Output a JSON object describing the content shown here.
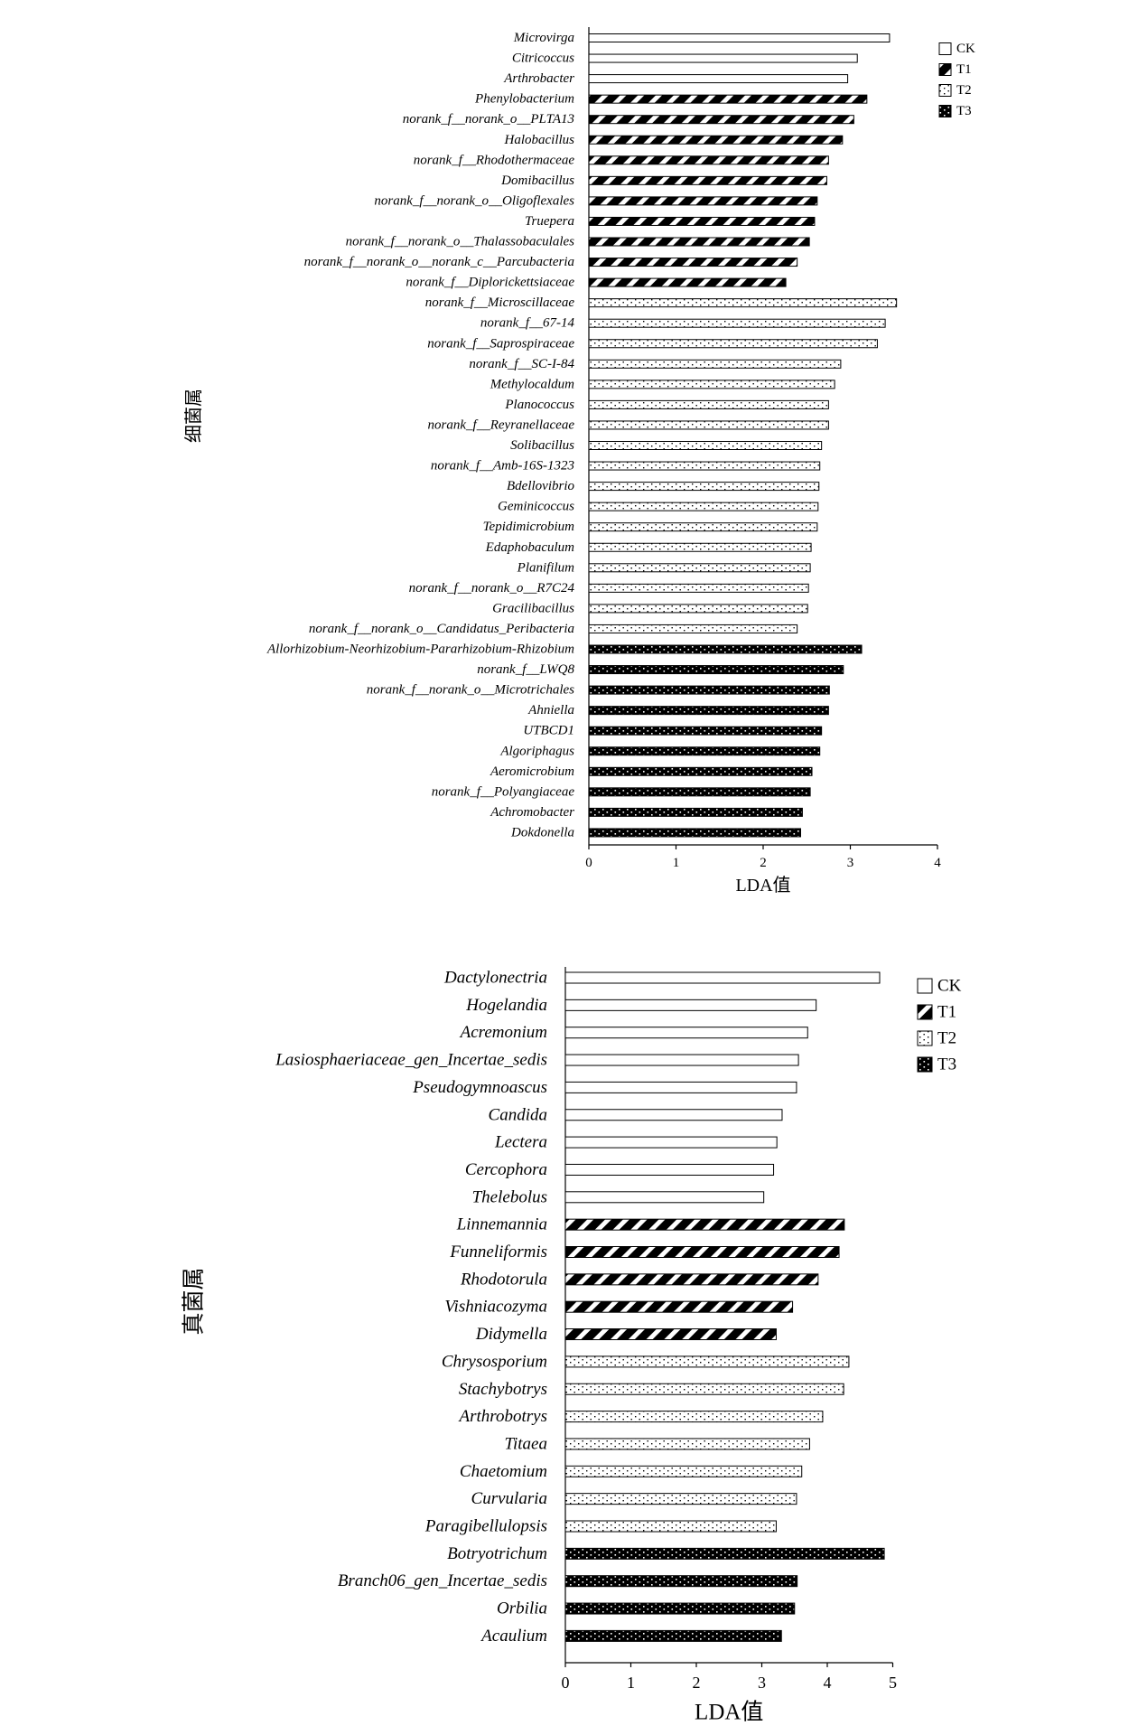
{
  "chart_data": [
    {
      "type": "bar",
      "orientation": "horizontal",
      "xlabel": "LDA值",
      "ylabel": "细菌属",
      "xlim": [
        0,
        4
      ],
      "xticks": [
        0,
        1,
        2,
        3,
        4
      ],
      "legend": {
        "position": "top-right",
        "entries": [
          "CK",
          "T1",
          "T2",
          "T3"
        ]
      },
      "series_styles": {
        "CK": {
          "fill": "#ffffff",
          "pattern": "none"
        },
        "T1": {
          "fill": "#000000",
          "pattern": "diagonal-stripes"
        },
        "T2": {
          "fill": "#ffffff",
          "pattern": "sparse-dots"
        },
        "T3": {
          "fill": "#000000",
          "pattern": "dense-dots"
        }
      },
      "bars": [
        {
          "label": "Microvirga",
          "value": 3.45,
          "group": "CK"
        },
        {
          "label": "Citricoccus",
          "value": 3.08,
          "group": "CK"
        },
        {
          "label": "Arthrobacter",
          "value": 2.97,
          "group": "CK"
        },
        {
          "label": "Phenylobacterium",
          "value": 3.19,
          "group": "T1"
        },
        {
          "label": "norank_f__norank_o__PLTA13",
          "value": 3.04,
          "group": "T1"
        },
        {
          "label": "Halobacillus",
          "value": 2.91,
          "group": "T1"
        },
        {
          "label": "norank_f__Rhodothermaceae",
          "value": 2.75,
          "group": "T1"
        },
        {
          "label": "Domibacillus",
          "value": 2.73,
          "group": "T1"
        },
        {
          "label": "norank_f__norank_o__Oligoflexales",
          "value": 2.62,
          "group": "T1"
        },
        {
          "label": "Truepera",
          "value": 2.59,
          "group": "T1"
        },
        {
          "label": "norank_f__norank_o__Thalassobaculales",
          "value": 2.53,
          "group": "T1"
        },
        {
          "label": "norank_f__norank_o__norank_c__Parcubacteria",
          "value": 2.39,
          "group": "T1"
        },
        {
          "label": "norank_f__Diplorickettsiaceae",
          "value": 2.26,
          "group": "T1"
        },
        {
          "label": "norank_f__Microscillaceae",
          "value": 3.53,
          "group": "T2"
        },
        {
          "label": "norank_f__67-14",
          "value": 3.4,
          "group": "T2"
        },
        {
          "label": "norank_f__Saprospiraceae",
          "value": 3.31,
          "group": "T2"
        },
        {
          "label": "norank_f__SC-I-84",
          "value": 2.89,
          "group": "T2"
        },
        {
          "label": "Methylocaldum",
          "value": 2.82,
          "group": "T2"
        },
        {
          "label": "Planococcus",
          "value": 2.75,
          "group": "T2"
        },
        {
          "label": "norank_f__Reyranellaceae",
          "value": 2.75,
          "group": "T2"
        },
        {
          "label": "Solibacillus",
          "value": 2.67,
          "group": "T2"
        },
        {
          "label": "norank_f__Amb-16S-1323",
          "value": 2.65,
          "group": "T2"
        },
        {
          "label": "Bdellovibrio",
          "value": 2.64,
          "group": "T2"
        },
        {
          "label": "Geminicoccus",
          "value": 2.63,
          "group": "T2"
        },
        {
          "label": "Tepidimicrobium",
          "value": 2.62,
          "group": "T2"
        },
        {
          "label": "Edaphobaculum",
          "value": 2.55,
          "group": "T2"
        },
        {
          "label": "Planifilum",
          "value": 2.54,
          "group": "T2"
        },
        {
          "label": "norank_f__norank_o__R7C24",
          "value": 2.52,
          "group": "T2"
        },
        {
          "label": "Gracilibacillus",
          "value": 2.51,
          "group": "T2"
        },
        {
          "label": "norank_f__norank_o__Candidatus_Peribacteria",
          "value": 2.39,
          "group": "T2"
        },
        {
          "label": "Allorhizobium-Neorhizobium-Pararhizobium-Rhizobium",
          "value": 3.13,
          "group": "T3"
        },
        {
          "label": "norank_f__LWQ8",
          "value": 2.92,
          "group": "T3"
        },
        {
          "label": "norank_f__norank_o__Microtrichales",
          "value": 2.76,
          "group": "T3"
        },
        {
          "label": "Ahniella",
          "value": 2.75,
          "group": "T3"
        },
        {
          "label": "UTBCD1",
          "value": 2.67,
          "group": "T3"
        },
        {
          "label": "Algoriphagus",
          "value": 2.65,
          "group": "T3"
        },
        {
          "label": "Aeromicrobium",
          "value": 2.56,
          "group": "T3"
        },
        {
          "label": "norank_f__Polyangiaceae",
          "value": 2.54,
          "group": "T3"
        },
        {
          "label": "Achromobacter",
          "value": 2.45,
          "group": "T3"
        },
        {
          "label": "Dokdonella",
          "value": 2.43,
          "group": "T3"
        }
      ]
    },
    {
      "type": "bar",
      "orientation": "horizontal",
      "xlabel": "LDA值",
      "ylabel": "真菌属",
      "xlim": [
        0,
        5
      ],
      "xticks": [
        0,
        1,
        2,
        3,
        4,
        5
      ],
      "legend": {
        "position": "top-right",
        "entries": [
          "CK",
          "T1",
          "T2",
          "T3"
        ]
      },
      "series_styles": {
        "CK": {
          "fill": "#ffffff",
          "pattern": "none"
        },
        "T1": {
          "fill": "#000000",
          "pattern": "diagonal-stripes"
        },
        "T2": {
          "fill": "#ffffff",
          "pattern": "sparse-dots"
        },
        "T3": {
          "fill": "#000000",
          "pattern": "dense-dots"
        }
      },
      "bars": [
        {
          "label": "Dactylonectria",
          "value": 4.8,
          "group": "CK"
        },
        {
          "label": "Hogelandia",
          "value": 3.83,
          "group": "CK"
        },
        {
          "label": "Acremonium",
          "value": 3.7,
          "group": "CK"
        },
        {
          "label": "Lasiosphaeriaceae_gen_Incertae_sedis",
          "value": 3.56,
          "group": "CK"
        },
        {
          "label": "Pseudogymnoascus",
          "value": 3.53,
          "group": "CK"
        },
        {
          "label": "Candida",
          "value": 3.31,
          "group": "CK"
        },
        {
          "label": "Lectera",
          "value": 3.23,
          "group": "CK"
        },
        {
          "label": "Cercophora",
          "value": 3.18,
          "group": "CK"
        },
        {
          "label": "Thelebolus",
          "value": 3.03,
          "group": "CK"
        },
        {
          "label": "Linnemannia",
          "value": 4.26,
          "group": "T1"
        },
        {
          "label": "Funneliformis",
          "value": 4.18,
          "group": "T1"
        },
        {
          "label": "Rhodotorula",
          "value": 3.86,
          "group": "T1"
        },
        {
          "label": "Vishniacozyma",
          "value": 3.47,
          "group": "T1"
        },
        {
          "label": "Didymella",
          "value": 3.22,
          "group": "T1"
        },
        {
          "label": "Chrysosporium",
          "value": 4.33,
          "group": "T2"
        },
        {
          "label": "Stachybotrys",
          "value": 4.25,
          "group": "T2"
        },
        {
          "label": "Arthrobotrys",
          "value": 3.93,
          "group": "T2"
        },
        {
          "label": "Titaea",
          "value": 3.73,
          "group": "T2"
        },
        {
          "label": "Chaetomium",
          "value": 3.61,
          "group": "T2"
        },
        {
          "label": "Curvularia",
          "value": 3.53,
          "group": "T2"
        },
        {
          "label": "Paragibellulopsis",
          "value": 3.22,
          "group": "T2"
        },
        {
          "label": "Botryotrichum",
          "value": 4.87,
          "group": "T3"
        },
        {
          "label": "Branch06_gen_Incertae_sedis",
          "value": 3.54,
          "group": "T3"
        },
        {
          "label": "Orbilia",
          "value": 3.5,
          "group": "T3"
        },
        {
          "label": "Acaulium",
          "value": 3.3,
          "group": "T3"
        }
      ]
    }
  ]
}
